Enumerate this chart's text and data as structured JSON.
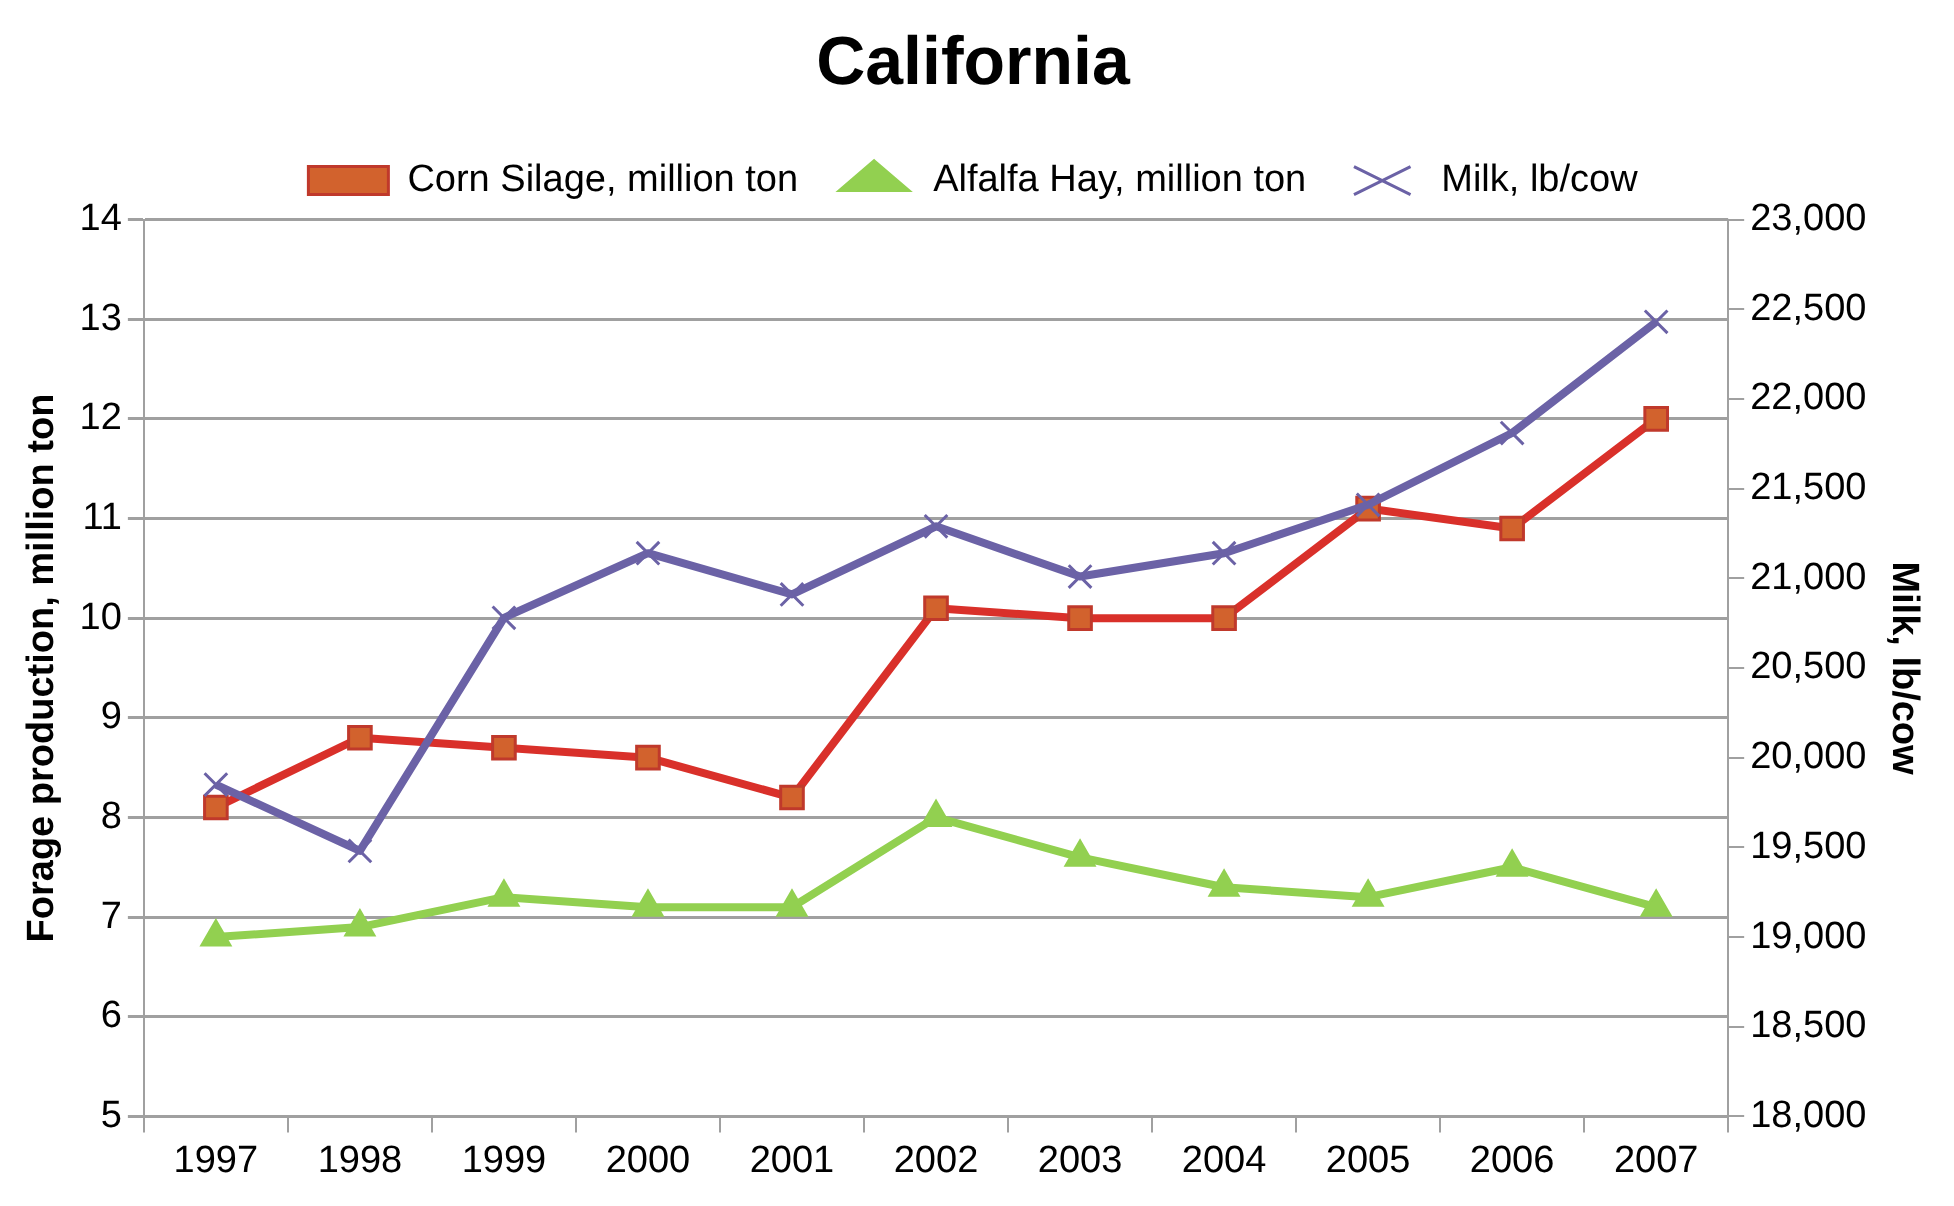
{
  "chart_data": {
    "type": "line",
    "title": "California",
    "ylabel": "Forage production, million ton",
    "y2label": "Milk, lb/cow",
    "categories": [
      "1997",
      "1998",
      "1999",
      "2000",
      "2001",
      "2002",
      "2003",
      "2004",
      "2005",
      "2006",
      "2007"
    ],
    "series": [
      {
        "name": "Corn Silage, million ton",
        "color": "#d9302a",
        "marker": "square",
        "values": [
          8.1,
          8.8,
          8.7,
          8.6,
          8.2,
          10.1,
          10.0,
          10.0,
          11.1,
          10.9,
          12.0
        ]
      },
      {
        "name": "Alfalfa Hay, million ton",
        "color": "#92d050",
        "marker": "triangle",
        "values": [
          6.8,
          6.9,
          7.2,
          7.1,
          7.1,
          8.0,
          7.6,
          7.3,
          7.2,
          7.5,
          7.1
        ]
      },
      {
        "name": "Milk, lb/cow",
        "color": "#6b62a6",
        "marker": "cross",
        "axis": "y2",
        "values": [
          19850,
          19480,
          20780,
          21140,
          20910,
          21290,
          21010,
          21140,
          21410,
          21810,
          22430
        ]
      }
    ],
    "ylim": [
      5,
      14
    ],
    "yticks": [
      5,
      6,
      7,
      8,
      9,
      10,
      11,
      12,
      13,
      14
    ],
    "y2lim": [
      18000,
      23000
    ],
    "y2ticks": [
      {
        "value": 18000,
        "label": "18,000"
      },
      {
        "value": 18500,
        "label": "18,500"
      },
      {
        "value": 19000,
        "label": "19,000"
      },
      {
        "value": 19500,
        "label": "19,500"
      },
      {
        "value": 20000,
        "label": "20,000"
      },
      {
        "value": 20500,
        "label": "20,500"
      },
      {
        "value": 21000,
        "label": "21,000"
      },
      {
        "value": 21500,
        "label": "21,500"
      },
      {
        "value": 22000,
        "label": "22,000"
      },
      {
        "value": 22500,
        "label": "22,500"
      },
      {
        "value": 23000,
        "label": "23,000"
      }
    ],
    "grid": "y",
    "legend": "top"
  }
}
